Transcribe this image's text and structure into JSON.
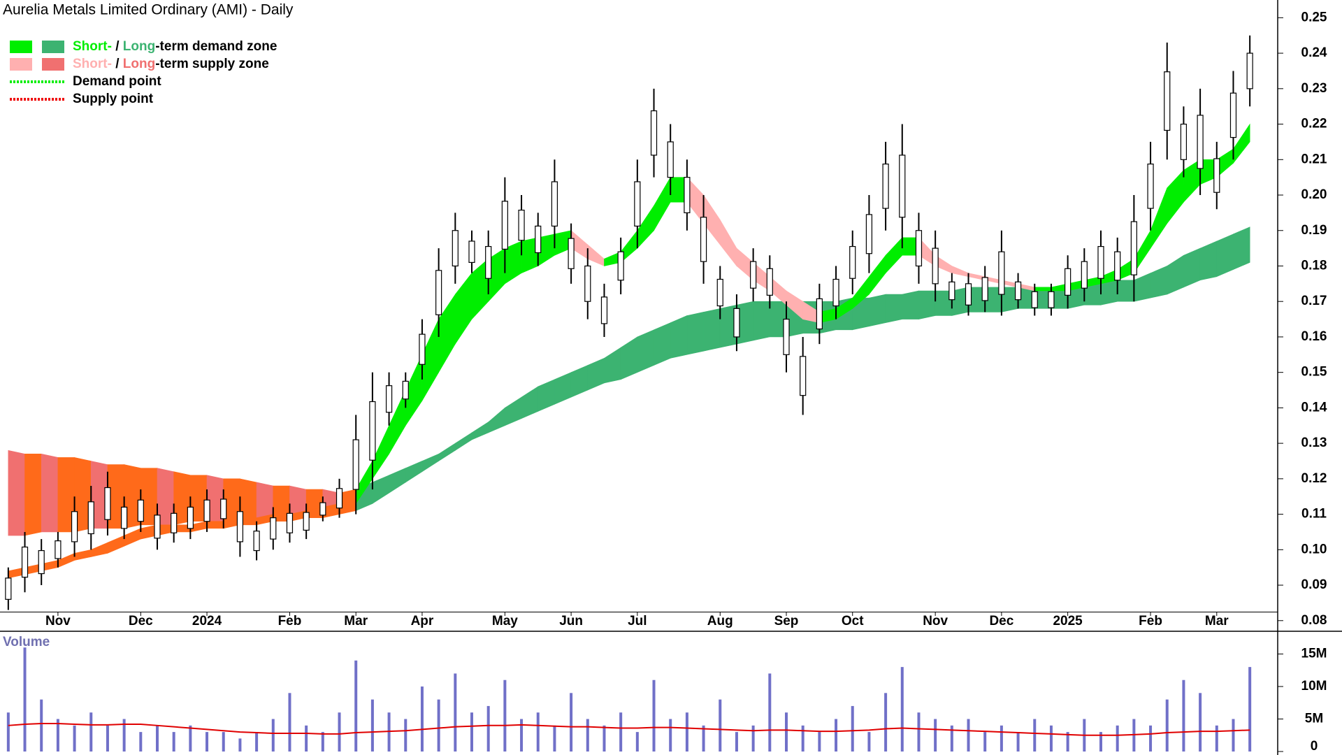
{
  "chart_data": {
    "type": "ohlc",
    "title": "Aurelia Metals Limited Ordinary (AMI) - Daily",
    "legend": [
      {
        "parts": [
          "Short-",
          " / ",
          "Long",
          "-term demand zone"
        ],
        "colors": [
          "#00ee00",
          "#3cb371"
        ]
      },
      {
        "parts": [
          "Short-",
          " / ",
          "Long",
          "-term supply zone"
        ],
        "colors": [
          "#ffb0b0",
          "#f07070"
        ]
      },
      {
        "parts": [
          "Demand point"
        ],
        "colors": [
          "#00ee00"
        ]
      },
      {
        "parts": [
          "Supply point"
        ],
        "colors": [
          "#ee0000"
        ]
      }
    ],
    "categories": [
      null,
      null,
      null,
      "Nov",
      null,
      null,
      null,
      null,
      "Dec",
      null,
      null,
      null,
      "2024",
      null,
      null,
      null,
      null,
      "Feb",
      null,
      null,
      null,
      "Mar",
      null,
      null,
      null,
      "Apr",
      null,
      null,
      null,
      null,
      "May",
      null,
      null,
      null,
      "Jun",
      null,
      null,
      null,
      "Jul",
      null,
      null,
      null,
      null,
      "Aug",
      null,
      null,
      null,
      "Sep",
      null,
      null,
      null,
      "Oct",
      null,
      null,
      null,
      null,
      "Nov",
      null,
      null,
      null,
      "Dec",
      null,
      null,
      null,
      "2025",
      null,
      null,
      null,
      null,
      "Feb",
      null,
      null,
      null,
      "Mar",
      null,
      null
    ],
    "high": [
      0.095,
      0.105,
      0.103,
      0.105,
      0.115,
      0.118,
      0.122,
      0.115,
      0.117,
      0.113,
      0.113,
      0.115,
      0.117,
      0.117,
      0.115,
      0.108,
      0.112,
      0.113,
      0.113,
      0.115,
      0.12,
      0.138,
      0.15,
      0.15,
      0.15,
      0.165,
      0.185,
      0.195,
      0.19,
      0.19,
      0.205,
      0.2,
      0.195,
      0.21,
      0.192,
      0.185,
      0.175,
      0.188,
      0.21,
      0.23,
      0.22,
      0.21,
      0.2,
      0.18,
      0.172,
      0.185,
      0.183,
      0.17,
      0.16,
      0.175,
      0.18,
      0.19,
      0.2,
      0.215,
      0.22,
      0.195,
      0.19,
      0.178,
      0.178,
      0.18,
      0.19,
      0.178,
      0.175,
      0.175,
      0.183,
      0.185,
      0.19,
      0.188,
      0.2,
      0.215,
      0.243,
      0.225,
      0.23,
      0.215,
      0.235,
      0.245
    ],
    "low": [
      0.083,
      0.088,
      0.09,
      0.095,
      0.098,
      0.1,
      0.104,
      0.103,
      0.105,
      0.1,
      0.102,
      0.103,
      0.105,
      0.106,
      0.098,
      0.097,
      0.1,
      0.102,
      0.103,
      0.108,
      0.109,
      0.11,
      0.117,
      0.135,
      0.14,
      0.148,
      0.16,
      0.175,
      0.178,
      0.172,
      0.178,
      0.183,
      0.18,
      0.185,
      0.175,
      0.165,
      0.16,
      0.172,
      0.185,
      0.205,
      0.2,
      0.19,
      0.175,
      0.165,
      0.156,
      0.17,
      0.168,
      0.15,
      0.138,
      0.158,
      0.165,
      0.172,
      0.178,
      0.19,
      0.185,
      0.175,
      0.17,
      0.168,
      0.166,
      0.167,
      0.166,
      0.168,
      0.166,
      0.166,
      0.168,
      0.17,
      0.172,
      0.172,
      0.17,
      0.19,
      0.21,
      0.205,
      0.2,
      0.196,
      0.21,
      0.225
    ],
    "long_lower": [
      0.104,
      0.104,
      0.105,
      0.105,
      0.105,
      0.106,
      0.106,
      0.106,
      0.107,
      0.107,
      0.107,
      0.108,
      0.108,
      0.108,
      0.108,
      0.109,
      0.109,
      0.109,
      0.109,
      0.11,
      0.11,
      0.111,
      0.113,
      0.116,
      0.119,
      0.122,
      0.125,
      0.128,
      0.131,
      0.133,
      0.135,
      0.137,
      0.139,
      0.141,
      0.143,
      0.145,
      0.147,
      0.148,
      0.15,
      0.152,
      0.154,
      0.155,
      0.156,
      0.157,
      0.158,
      0.159,
      0.16,
      0.16,
      0.161,
      0.161,
      0.162,
      0.162,
      0.163,
      0.164,
      0.165,
      0.165,
      0.166,
      0.166,
      0.167,
      0.167,
      0.167,
      0.168,
      0.168,
      0.168,
      0.168,
      0.169,
      0.169,
      0.17,
      0.17,
      0.171,
      0.172,
      0.174,
      0.176,
      0.177,
      0.179,
      0.181
    ],
    "long_upper": [
      0.128,
      0.127,
      0.127,
      0.126,
      0.126,
      0.125,
      0.124,
      0.124,
      0.123,
      0.123,
      0.122,
      0.121,
      0.121,
      0.12,
      0.12,
      0.119,
      0.118,
      0.118,
      0.117,
      0.117,
      0.116,
      0.117,
      0.119,
      0.121,
      0.123,
      0.125,
      0.127,
      0.13,
      0.133,
      0.136,
      0.14,
      0.143,
      0.146,
      0.148,
      0.15,
      0.152,
      0.154,
      0.157,
      0.16,
      0.162,
      0.164,
      0.166,
      0.167,
      0.168,
      0.169,
      0.17,
      0.17,
      0.17,
      0.17,
      0.17,
      0.17,
      0.171,
      0.171,
      0.172,
      0.172,
      0.173,
      0.173,
      0.173,
      0.174,
      0.174,
      0.174,
      0.174,
      0.174,
      0.174,
      0.174,
      0.175,
      0.175,
      0.176,
      0.176,
      0.178,
      0.18,
      0.183,
      0.185,
      0.187,
      0.189,
      0.191
    ],
    "short_lower": [
      0.092,
      0.093,
      0.094,
      0.095,
      0.097,
      0.098,
      0.099,
      0.101,
      0.103,
      0.104,
      0.105,
      0.105,
      0.106,
      0.106,
      0.107,
      0.107,
      0.108,
      0.108,
      0.109,
      0.109,
      0.11,
      0.113,
      0.12,
      0.127,
      0.135,
      0.142,
      0.15,
      0.158,
      0.165,
      0.17,
      0.175,
      0.178,
      0.18,
      0.183,
      0.185,
      0.182,
      0.18,
      0.181,
      0.185,
      0.19,
      0.198,
      0.198,
      0.192,
      0.186,
      0.18,
      0.176,
      0.173,
      0.169,
      0.165,
      0.164,
      0.165,
      0.168,
      0.172,
      0.178,
      0.183,
      0.183,
      0.18,
      0.178,
      0.177,
      0.176,
      0.175,
      0.174,
      0.173,
      0.173,
      0.173,
      0.174,
      0.175,
      0.176,
      0.178,
      0.185,
      0.192,
      0.198,
      0.203,
      0.205,
      0.209,
      0.215
    ],
    "short_upper": [
      0.094,
      0.095,
      0.096,
      0.097,
      0.099,
      0.1,
      0.102,
      0.104,
      0.106,
      0.107,
      0.107,
      0.107,
      0.108,
      0.108,
      0.109,
      0.109,
      0.11,
      0.11,
      0.111,
      0.112,
      0.113,
      0.117,
      0.125,
      0.135,
      0.145,
      0.155,
      0.165,
      0.172,
      0.178,
      0.182,
      0.185,
      0.187,
      0.188,
      0.189,
      0.19,
      0.186,
      0.182,
      0.184,
      0.19,
      0.197,
      0.205,
      0.205,
      0.2,
      0.193,
      0.185,
      0.181,
      0.177,
      0.173,
      0.17,
      0.167,
      0.168,
      0.171,
      0.177,
      0.183,
      0.188,
      0.188,
      0.183,
      0.18,
      0.178,
      0.177,
      0.176,
      0.175,
      0.174,
      0.174,
      0.175,
      0.176,
      0.177,
      0.179,
      0.182,
      0.19,
      0.202,
      0.207,
      0.21,
      0.21,
      0.213,
      0.22
    ],
    "ylim": [
      0.077,
      0.255
    ],
    "yticks": [
      0.08,
      0.09,
      {
        "value": 0.1,
        "label": "0.10"
      },
      0.11,
      0.12,
      0.13,
      0.14,
      0.15,
      0.16,
      0.17,
      0.18,
      0.19,
      {
        "value": 0.2,
        "label": "0.20"
      },
      0.21,
      0.22,
      0.23,
      0.24,
      0.25
    ],
    "volume_label": "Volume",
    "volume": [
      6,
      16,
      8,
      5,
      4,
      6,
      4,
      5,
      3,
      4,
      3,
      4,
      3,
      3,
      2,
      3,
      5,
      9,
      4,
      3,
      6,
      14,
      8,
      6,
      5,
      10,
      8,
      12,
      6,
      7,
      11,
      5,
      6,
      4,
      9,
      5,
      4,
      6,
      3,
      11,
      5,
      6,
      4,
      8,
      3,
      4,
      12,
      6,
      4,
      3,
      5,
      7,
      3,
      9,
      13,
      6,
      5,
      4,
      5,
      3,
      4,
      3,
      5,
      4,
      3,
      5,
      3,
      4,
      5,
      4,
      8,
      11,
      9,
      4,
      5,
      13
    ],
    "volume_ma": [
      4.0,
      4.2,
      4.3,
      4.3,
      4.2,
      4.1,
      4.1,
      4.2,
      4.2,
      4.0,
      3.8,
      3.6,
      3.4,
      3.2,
      3.0,
      2.9,
      2.8,
      2.8,
      2.8,
      2.7,
      2.7,
      2.9,
      3.0,
      3.1,
      3.2,
      3.4,
      3.6,
      3.8,
      3.9,
      4.0,
      4.0,
      4.1,
      4.0,
      3.9,
      3.8,
      3.8,
      3.7,
      3.6,
      3.6,
      3.7,
      3.7,
      3.6,
      3.5,
      3.4,
      3.3,
      3.2,
      3.3,
      3.3,
      3.2,
      3.1,
      3.1,
      3.2,
      3.3,
      3.5,
      3.6,
      3.5,
      3.4,
      3.3,
      3.2,
      3.1,
      3.0,
      2.9,
      2.8,
      2.7,
      2.6,
      2.5,
      2.5,
      2.5,
      2.6,
      2.7,
      2.9,
      3.0,
      3.1,
      3.1,
      3.2,
      3.3
    ],
    "volume_color": "#7070c8",
    "volume_ma_color": "#e00000",
    "y2lim": [
      0,
      18.5
    ],
    "y2ticks": [
      {
        "value": 0,
        "label": "0"
      },
      {
        "value": 5,
        "label": "5M"
      },
      {
        "value": 10,
        "label": "10M"
      },
      {
        "value": 15,
        "label": "15M"
      }
    ]
  }
}
